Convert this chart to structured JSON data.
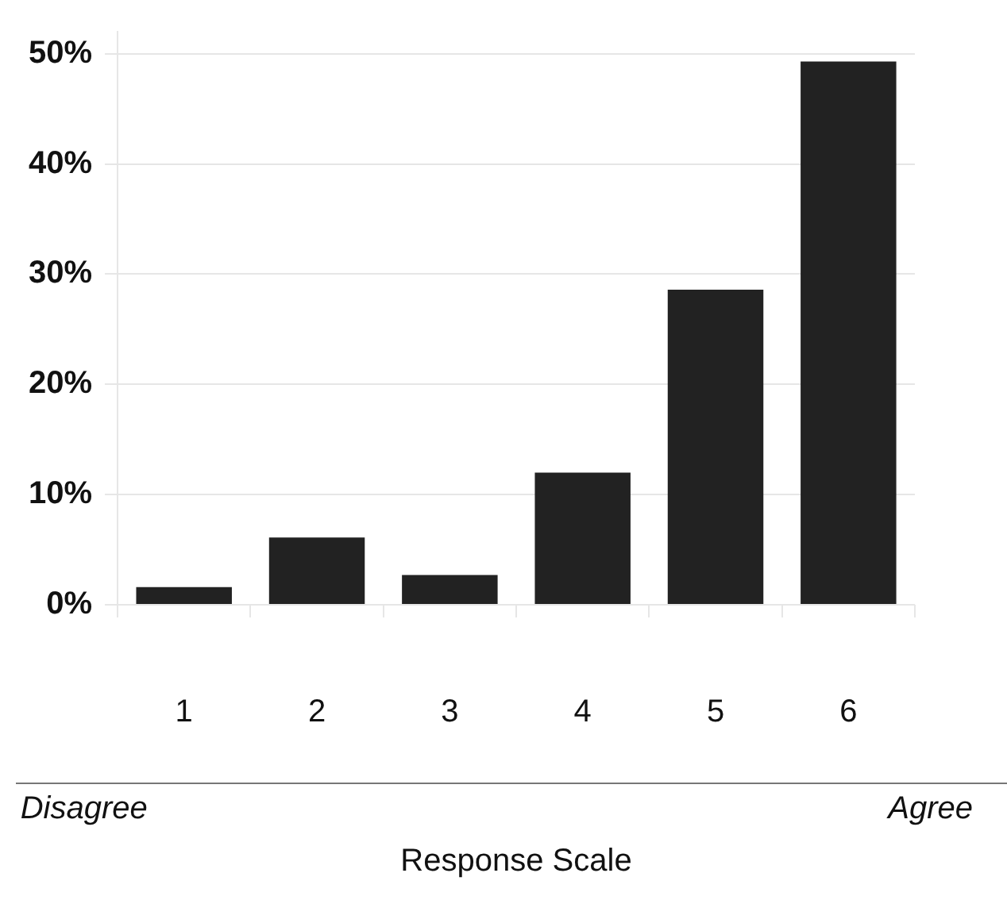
{
  "chart_data": {
    "type": "bar",
    "xlabel": "Response Scale",
    "categories": [
      "1",
      "2",
      "3",
      "4",
      "5",
      "6"
    ],
    "values": [
      1.6,
      6.1,
      2.7,
      12.0,
      28.6,
      49.3
    ],
    "color": "#222222",
    "ylim": [
      0,
      52
    ],
    "yticks": [
      {
        "value": 0,
        "label": "0%"
      },
      {
        "value": 10,
        "label": "10%"
      },
      {
        "value": 20,
        "label": "20%"
      },
      {
        "value": 30,
        "label": "30%"
      },
      {
        "value": 40,
        "label": "40%"
      },
      {
        "value": 50,
        "label": "50%"
      }
    ],
    "grid": "y",
    "legend": false,
    "annotations": [
      "Disagree",
      "Agree"
    ]
  }
}
